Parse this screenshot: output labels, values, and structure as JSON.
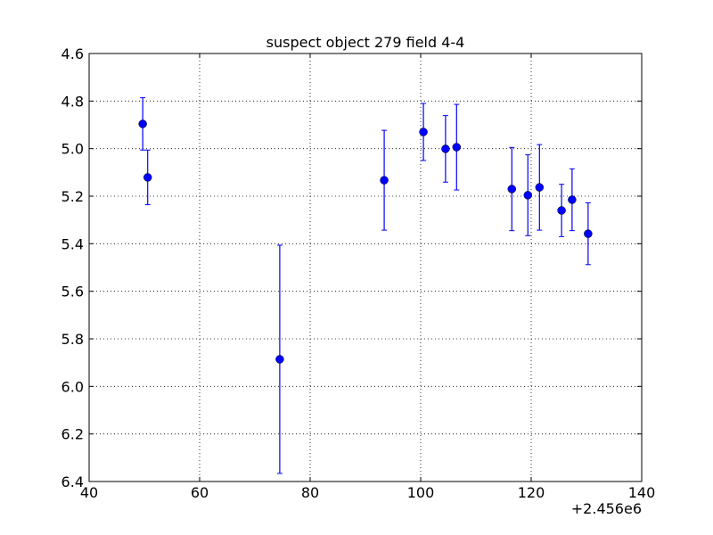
{
  "chart_data": {
    "type": "errorbar",
    "title": "suspect object 279 field 4-4",
    "x_offset_label": "+2.456e6",
    "x": [
      49.7,
      50.6,
      74.5,
      93.4,
      100.5,
      104.5,
      106.5,
      116.5,
      119.4,
      121.5,
      125.5,
      127.4,
      130.3
    ],
    "values": [
      4.896,
      5.121,
      5.886,
      5.133,
      4.93,
      5.001,
      4.994,
      5.17,
      5.196,
      5.163,
      5.26,
      5.215,
      5.358
    ],
    "errors": [
      0.11,
      0.115,
      0.48,
      0.21,
      0.12,
      0.14,
      0.18,
      0.175,
      0.17,
      0.18,
      0.11,
      0.13,
      0.13
    ],
    "color": "#0000ff",
    "xlim": [
      40,
      140
    ],
    "xticks": [
      40,
      60,
      80,
      100,
      120,
      140
    ],
    "ylim": [
      4.6,
      6.4
    ],
    "yticks": [
      4.6,
      4.8,
      {
        "value": 5.0,
        "label": "5.0"
      },
      5.2,
      5.4,
      5.6,
      5.8,
      {
        "value": 6.0,
        "label": "6.0"
      },
      6.2,
      6.4
    ],
    "invert_y": true,
    "grid": true
  }
}
